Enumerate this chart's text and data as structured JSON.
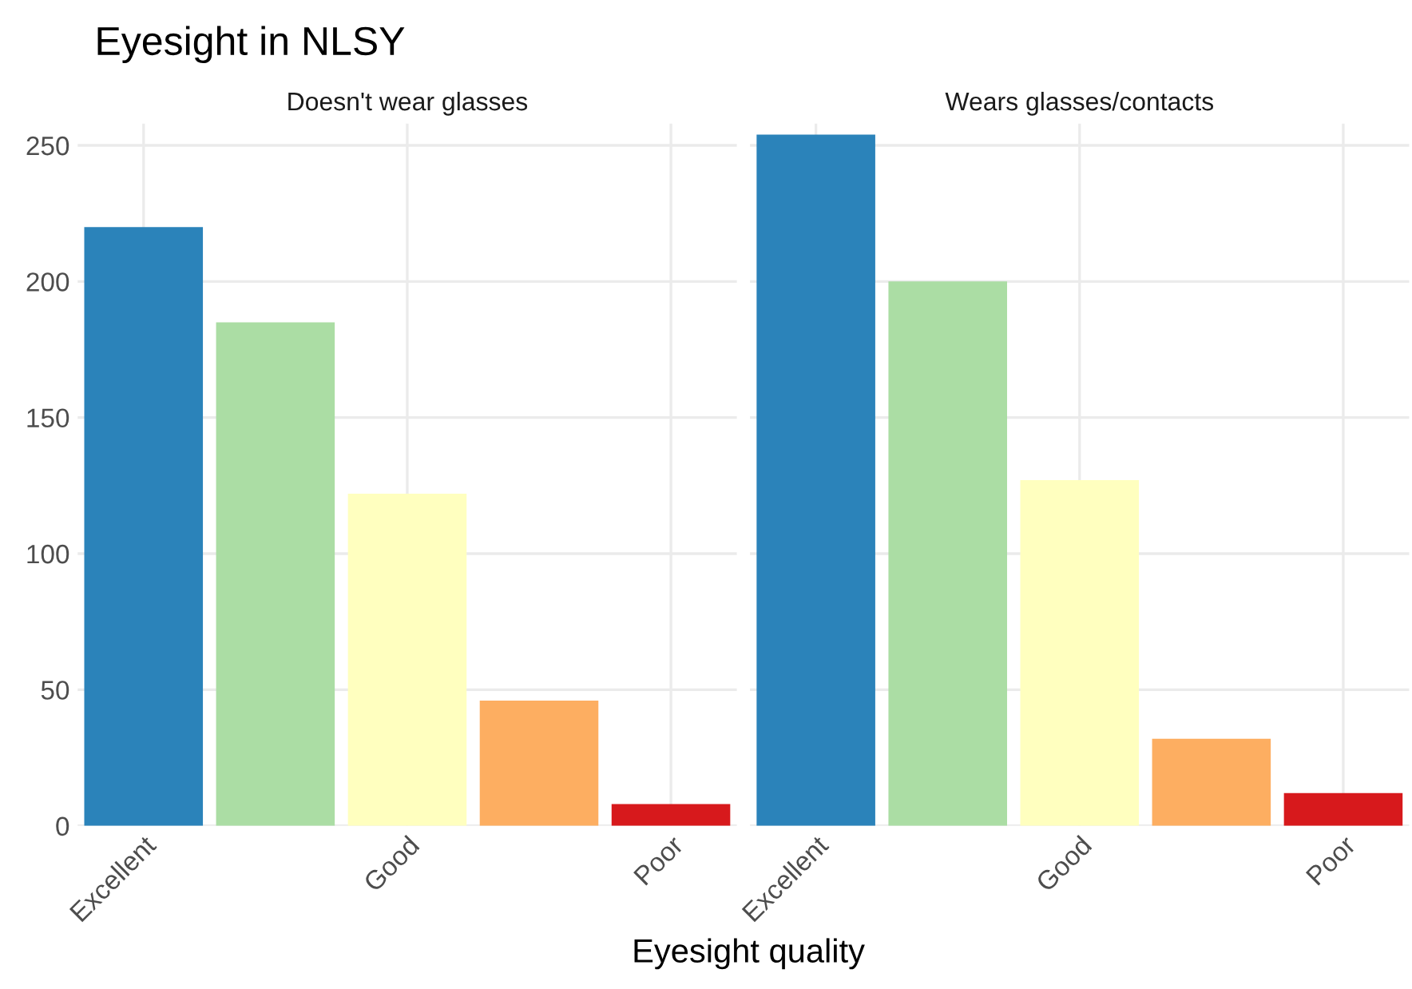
{
  "chart_data": [
    {
      "type": "bar",
      "title": "Eyesight in NLSY",
      "subtitle": "Doesn't wear glasses",
      "xlabel": "Eyesight quality",
      "categories": [
        "Excellent",
        null,
        "Good",
        null,
        "Poor"
      ],
      "values": [
        220,
        185,
        122,
        46,
        8
      ],
      "colors": [
        "#2b83ba",
        "#abdda4",
        "#ffffbf",
        "#fdae61",
        "#d7191c"
      ],
      "ylim": [
        0,
        258
      ],
      "yticks": [
        0,
        50,
        100,
        150,
        200,
        250
      ],
      "grid": true,
      "legend": false
    },
    {
      "type": "bar",
      "subtitle": "Wears glasses/contacts",
      "categories": [
        "Excellent",
        null,
        "Good",
        null,
        "Poor"
      ],
      "values": [
        254,
        200,
        127,
        32,
        12
      ],
      "colors": [
        "#2b83ba",
        "#abdda4",
        "#ffffbf",
        "#fdae61",
        "#d7191c"
      ],
      "ylim": [
        0,
        258
      ],
      "yticks": [
        0,
        50,
        100,
        150,
        200,
        250
      ],
      "grid": true,
      "legend": false,
      "tick_labels": "x"
    }
  ]
}
